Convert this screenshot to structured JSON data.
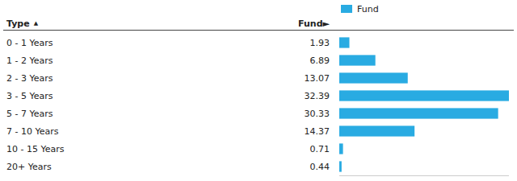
{
  "chart_data": {
    "type": "bar",
    "orientation": "horizontal",
    "ylabel": "Type",
    "xlabel": "Fund►",
    "annotations": [
      "▲"
    ],
    "categories": [
      "0 - 1 Years",
      "1 - 2 Years",
      "2 - 3 Years",
      "3 - 5 Years",
      "5 - 7 Years",
      "7 - 10 Years",
      "10 - 15 Years",
      "20+ Years"
    ],
    "series": [
      {
        "name": "Fund",
        "color": "#29ABE2",
        "values": [
          1.93,
          6.89,
          13.07,
          32.39,
          30.33,
          14.37,
          0.71,
          0.44
        ]
      }
    ],
    "xlim": [
      0,
      32.39
    ],
    "xticks": [],
    "tick_labels": "y",
    "data_labels": true,
    "legend": "top",
    "grid": false
  }
}
